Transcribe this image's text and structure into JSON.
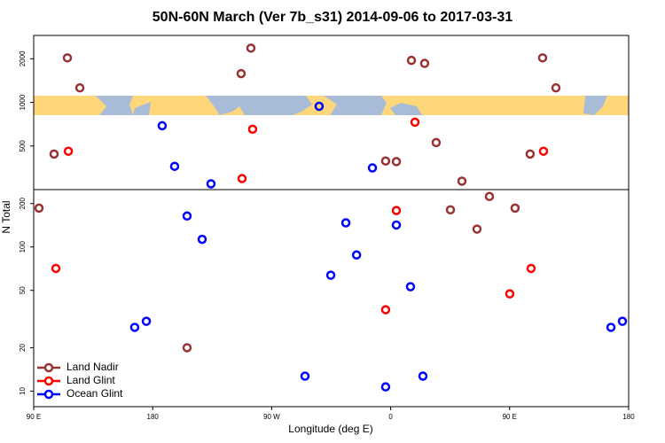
{
  "chart_data": [
    {
      "type": "scatter",
      "title": "50N-60N March (Ver 7b_s31)   2014-09-06 to 2017-03-31",
      "xlim": [
        90,
        540
      ],
      "ylim": [
        250,
        2900
      ],
      "log_y": true,
      "yticks": [
        500,
        1000,
        2000
      ],
      "series": [
        {
          "color": "#993333",
          "x": [
            115.5,
            124.9,
            105.4,
            254.3,
            246.9,
            375.7,
            385.7,
            394.4,
            356.2,
            364.3,
            413.9,
            465.5,
            474.9,
            485
          ],
          "values": [
            2030,
            1260,
            440,
            2370,
            1580,
            1950,
            1860,
            528,
            394,
            390,
            286,
            440,
            2030,
            1260
          ]
        },
        {
          "color": "#ff0000",
          "x": [
            116.2,
            255.6,
            247.6,
            378.4,
            475.6
          ],
          "values": [
            460,
            653,
            298,
            730,
            460
          ]
        },
        {
          "color": "#0000ff",
          "x": [
            187.2,
            196.6,
            224.1,
            305.9,
            346.2
          ],
          "values": [
            690,
            362,
            274,
            940,
            353
          ]
        }
      ]
    },
    {
      "type": "scatter",
      "xlabel": "Longitude (deg E)",
      "ylabel": "N Total",
      "xlim": [
        90,
        540
      ],
      "ylim": [
        7.8,
        250
      ],
      "log_y": true,
      "xticks": [
        {
          "value": 90,
          "label": "90 E"
        },
        180,
        {
          "value": 270,
          "label": "90 W"
        },
        {
          "value": 360,
          "label": "0"
        },
        {
          "value": 450,
          "label": "90 E"
        },
        {
          "value": 540,
          "label": "180"
        }
      ],
      "yticks": [
        10,
        20,
        50,
        100,
        200
      ],
      "legend": "lower left",
      "series": [
        {
          "name": "Land Nadir",
          "color": "#993333",
          "x": [
            94,
            206,
            405.2,
            425.3,
            434.7,
            454.1
          ],
          "values": [
            186,
            20,
            181,
            133,
            224,
            186
          ]
        },
        {
          "name": "Land Glint",
          "color": "#ff0000",
          "x": [
            106.8,
            364.3,
            356.2,
            450.1,
            466.2
          ],
          "values": [
            71,
            179,
            36.7,
            47.3,
            71
          ]
        },
        {
          "name": "Ocean Glint",
          "color": "#0000ff",
          "x": [
            166.4,
            175.2,
            206,
            217.4,
            326.1,
            334.2,
            314.7,
            364.3,
            375,
            295.2,
            356.2,
            384.4,
            526.6,
            535.3
          ],
          "values": [
            27.7,
            30.5,
            164,
            113,
            147,
            88,
            63.7,
            142,
            53,
            12.7,
            10.7,
            12.7,
            27.7,
            30.5
          ]
        }
      ]
    }
  ]
}
